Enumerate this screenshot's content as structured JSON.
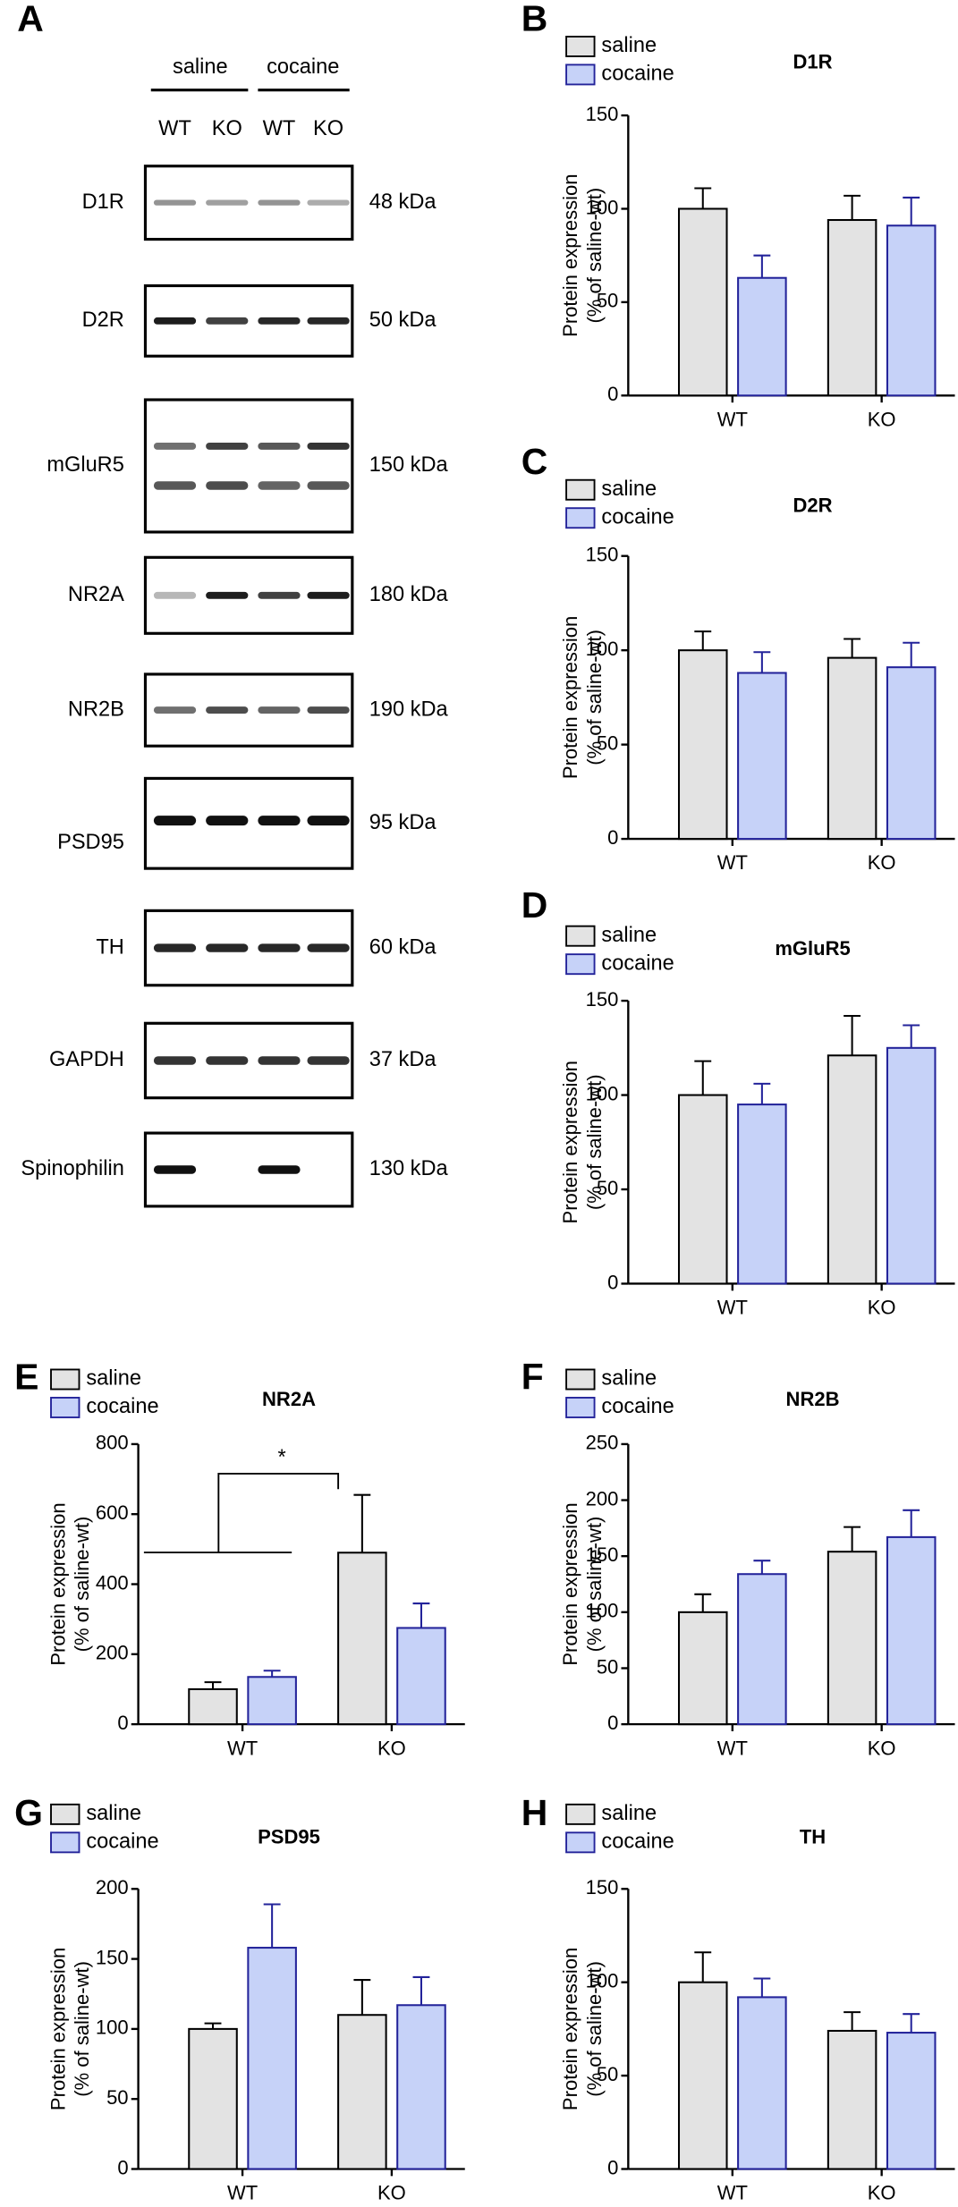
{
  "blot": {
    "panel": "A",
    "groups": [
      "saline",
      "cocaine"
    ],
    "lanes": [
      "WT",
      "KO",
      "WT",
      "KO"
    ],
    "proteins": [
      {
        "name": "D1R",
        "size": "48 kDa"
      },
      {
        "name": "D2R",
        "size": "50 kDa"
      },
      {
        "name": "mGluR5",
        "size": "150 kDa"
      },
      {
        "name": "NR2A",
        "size": "180 kDa"
      },
      {
        "name": "NR2B",
        "size": "190 kDa"
      },
      {
        "name": "PSD95",
        "size": "95 kDa"
      },
      {
        "name": "TH",
        "size": "60 kDa"
      },
      {
        "name": "GAPDH",
        "size": "37 kDa"
      },
      {
        "name": "Spinophilin",
        "size": "130 kDa"
      }
    ]
  },
  "chart_data": [
    {
      "type": "bar",
      "panel": "B",
      "title": "D1R",
      "ylabel": [
        "Protein expression",
        "(% of saline-wt)"
      ],
      "categories": [
        "WT",
        "KO"
      ],
      "series": [
        {
          "name": "saline",
          "color": "#e3e3e3",
          "edgecolor": "#000000",
          "values": [
            100,
            94
          ],
          "errors": [
            11,
            13
          ]
        },
        {
          "name": "cocaine",
          "color": "#c6d2f8",
          "edgecolor": "#23239a",
          "values": [
            63,
            91
          ],
          "errors": [
            12,
            15
          ]
        }
      ],
      "ylim": [
        0,
        150
      ],
      "yticks": [
        0,
        50,
        100,
        150
      ]
    },
    {
      "type": "bar",
      "panel": "C",
      "title": "D2R",
      "ylabel": [
        "Protein expression",
        "(% of saline-wt)"
      ],
      "categories": [
        "WT",
        "KO"
      ],
      "series": [
        {
          "name": "saline",
          "color": "#e3e3e3",
          "edgecolor": "#000000",
          "values": [
            100,
            96
          ],
          "errors": [
            10,
            10
          ]
        },
        {
          "name": "cocaine",
          "color": "#c6d2f8",
          "edgecolor": "#23239a",
          "values": [
            88,
            91
          ],
          "errors": [
            11,
            13
          ]
        }
      ],
      "ylim": [
        0,
        150
      ],
      "yticks": [
        0,
        50,
        100,
        150
      ]
    },
    {
      "type": "bar",
      "panel": "D",
      "title": "mGluR5",
      "ylabel": [
        "Protein expression",
        "(% of saline-wt)"
      ],
      "categories": [
        "WT",
        "KO"
      ],
      "series": [
        {
          "name": "saline",
          "color": "#e3e3e3",
          "edgecolor": "#000000",
          "values": [
            100,
            121
          ],
          "errors": [
            18,
            21
          ]
        },
        {
          "name": "cocaine",
          "color": "#c6d2f8",
          "edgecolor": "#23239a",
          "values": [
            95,
            125
          ],
          "errors": [
            11,
            12
          ]
        }
      ],
      "ylim": [
        0,
        150
      ],
      "yticks": [
        0,
        50,
        100,
        150
      ]
    },
    {
      "type": "bar",
      "panel": "E",
      "title": "NR2A",
      "ylabel": [
        "Protein expression",
        "(% of saline-wt)"
      ],
      "categories": [
        "WT",
        "KO"
      ],
      "series": [
        {
          "name": "saline",
          "color": "#e3e3e3",
          "edgecolor": "#000000",
          "values": [
            100,
            490
          ],
          "errors": [
            20,
            165
          ]
        },
        {
          "name": "cocaine",
          "color": "#c6d2f8",
          "edgecolor": "#23239a",
          "values": [
            135,
            275
          ],
          "errors": [
            18,
            70
          ]
        }
      ],
      "ylim": [
        0,
        800
      ],
      "yticks": [
        0,
        200,
        400,
        600,
        800
      ],
      "annotations": [
        "*"
      ]
    },
    {
      "type": "bar",
      "panel": "F",
      "title": "NR2B",
      "ylabel": [
        "Protein expression",
        "(% of saline-wt)"
      ],
      "categories": [
        "WT",
        "KO"
      ],
      "series": [
        {
          "name": "saline",
          "color": "#e3e3e3",
          "edgecolor": "#000000",
          "values": [
            100,
            154
          ],
          "errors": [
            16,
            22
          ]
        },
        {
          "name": "cocaine",
          "color": "#c6d2f8",
          "edgecolor": "#23239a",
          "values": [
            134,
            167
          ],
          "errors": [
            12,
            24
          ]
        }
      ],
      "ylim": [
        0,
        250
      ],
      "yticks": [
        0,
        50,
        100,
        150,
        200,
        250
      ]
    },
    {
      "type": "bar",
      "panel": "G",
      "title": "PSD95",
      "ylabel": [
        "Protein expression",
        "(% of saline-wt)"
      ],
      "categories": [
        "WT",
        "KO"
      ],
      "series": [
        {
          "name": "saline",
          "color": "#e3e3e3",
          "edgecolor": "#000000",
          "values": [
            100,
            110
          ],
          "errors": [
            4,
            25
          ]
        },
        {
          "name": "cocaine",
          "color": "#c6d2f8",
          "edgecolor": "#23239a",
          "values": [
            158,
            117
          ],
          "errors": [
            31,
            20
          ]
        }
      ],
      "ylim": [
        0,
        200
      ],
      "yticks": [
        0,
        50,
        100,
        150,
        200
      ]
    },
    {
      "type": "bar",
      "panel": "H",
      "title": "TH",
      "ylabel": [
        "Protein expression",
        "(% of saline-wt)"
      ],
      "categories": [
        "WT",
        "KO"
      ],
      "series": [
        {
          "name": "saline",
          "color": "#e3e3e3",
          "edgecolor": "#000000",
          "values": [
            100,
            74
          ],
          "errors": [
            16,
            10
          ]
        },
        {
          "name": "cocaine",
          "color": "#c6d2f8",
          "edgecolor": "#23239a",
          "values": [
            92,
            73
          ],
          "errors": [
            10,
            10
          ]
        }
      ],
      "ylim": [
        0,
        150
      ],
      "yticks": [
        0,
        50,
        100,
        150
      ]
    }
  ]
}
